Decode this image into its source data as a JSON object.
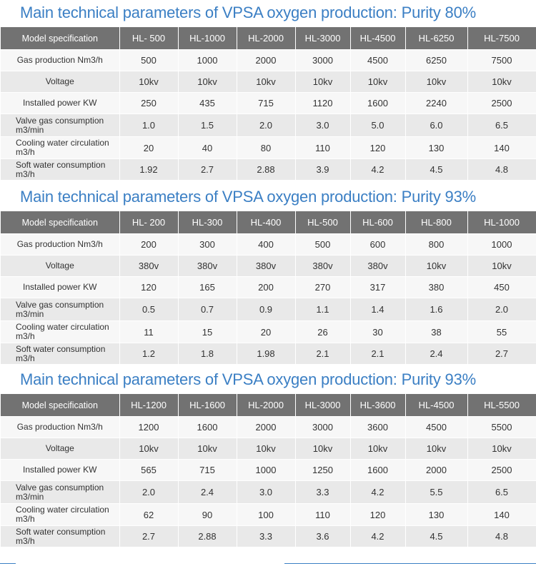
{
  "row_labels": [
    "Gas production Nm3/h",
    "Voltage",
    "Installed power KW",
    [
      "Valve gas consumption",
      "m3/min"
    ],
    [
      "Cooling water circulation",
      "m3/h"
    ],
    [
      "Soft water consumption",
      "m3/h"
    ]
  ],
  "header_label": "Model specification",
  "tables": [
    {
      "title": "Main technical parameters of VPSA oxygen production: Purity 80%",
      "models": [
        "HL- 500",
        "HL-1000",
        "HL-2000",
        "HL-3000",
        "HL-4500",
        "HL-6250",
        "HL-7500"
      ],
      "rows": [
        [
          "500",
          "1000",
          "2000",
          "3000",
          "4500",
          "6250",
          "7500"
        ],
        [
          "10kv",
          "10kv",
          "10kv",
          "10kv",
          "10kv",
          "10kv",
          "10kv"
        ],
        [
          "250",
          "435",
          "715",
          "1120",
          "1600",
          "2240",
          "2500"
        ],
        [
          "1.0",
          "1.5",
          "2.0",
          "3.0",
          "5.0",
          "6.0",
          "6.5"
        ],
        [
          "20",
          "40",
          "80",
          "110",
          "120",
          "130",
          "140"
        ],
        [
          "1.92",
          "2.7",
          "2.88",
          "3.9",
          "4.2",
          "4.5",
          "4.8"
        ]
      ]
    },
    {
      "title": "Main technical parameters of VPSA oxygen production: Purity 93%",
      "models": [
        "HL- 200",
        "HL-300",
        "HL-400",
        "HL-500",
        "HL-600",
        "HL-800",
        "HL-1000"
      ],
      "rows": [
        [
          "200",
          "300",
          "400",
          "500",
          "600",
          "800",
          "1000"
        ],
        [
          "380v",
          "380v",
          "380v",
          "380v",
          "380v",
          "10kv",
          "10kv"
        ],
        [
          "120",
          "165",
          "200",
          "270",
          "317",
          "380",
          "450"
        ],
        [
          "0.5",
          "0.7",
          "0.9",
          "1.1",
          "1.4",
          "1.6",
          "2.0"
        ],
        [
          "11",
          "15",
          "20",
          "26",
          "30",
          "38",
          "55"
        ],
        [
          "1.2",
          "1.8",
          "1.98",
          "2.1",
          "2.1",
          "2.4",
          "2.7"
        ]
      ]
    },
    {
      "title": "Main technical parameters of VPSA oxygen production: Purity 93%",
      "models": [
        "HL-1200",
        "HL-1600",
        "HL-2000",
        "HL-3000",
        "HL-3600",
        "HL-4500",
        "HL-5500"
      ],
      "rows": [
        [
          "1200",
          "1600",
          "2000",
          "3000",
          "3600",
          "4500",
          "5500"
        ],
        [
          "10kv",
          "10kv",
          "10kv",
          "10kv",
          "10kv",
          "10kv",
          "10kv"
        ],
        [
          "565",
          "715",
          "1000",
          "1250",
          "1600",
          "2000",
          "2500"
        ],
        [
          "2.0",
          "2.4",
          "3.0",
          "3.3",
          "4.2",
          "5.5",
          "6.5"
        ],
        [
          "62",
          "90",
          "100",
          "110",
          "120",
          "130",
          "140"
        ],
        [
          "2.7",
          "2.88",
          "3.3",
          "3.6",
          "4.2",
          "4.5",
          "4.8"
        ]
      ]
    }
  ]
}
